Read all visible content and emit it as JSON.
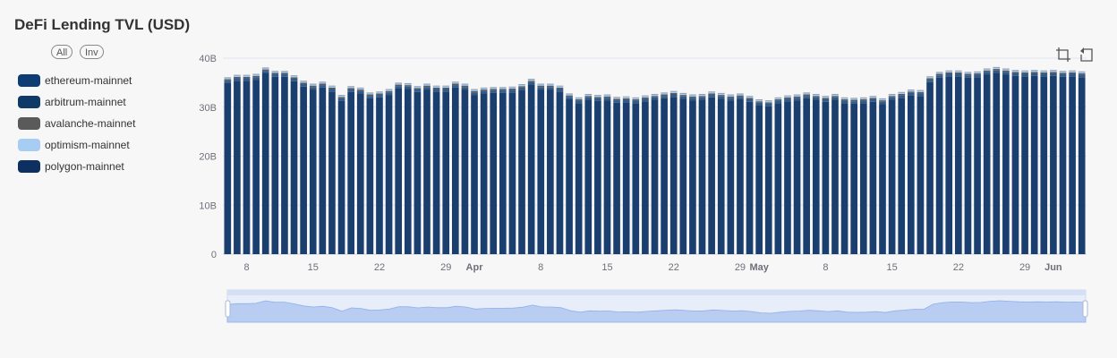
{
  "title": "DeFi Lending TVL (USD)",
  "legend_controls": {
    "all_label": "All",
    "inv_label": "Inv"
  },
  "toolbox": [
    "zoom-icon",
    "restore-icon"
  ],
  "chart_data": {
    "type": "bar",
    "stacked": true,
    "title": "DeFi Lending TVL (USD)",
    "xlabel": "",
    "ylabel": "",
    "ylim": [
      0,
      40
    ],
    "y_ticks": [
      "0",
      "10B",
      "20B",
      "30B",
      "40B"
    ],
    "y_tick_values": [
      0,
      10,
      20,
      30,
      40
    ],
    "grid": "horizontal",
    "legend_position": "left",
    "x_dates": [
      "Mar 6",
      "Mar 7",
      "Mar 8",
      "Mar 9",
      "Mar 10",
      "Mar 11",
      "Mar 12",
      "Mar 13",
      "Mar 14",
      "Mar 15",
      "Mar 16",
      "Mar 17",
      "Mar 18",
      "Mar 19",
      "Mar 20",
      "Mar 21",
      "Mar 22",
      "Mar 23",
      "Mar 24",
      "Mar 25",
      "Mar 26",
      "Mar 27",
      "Mar 28",
      "Mar 29",
      "Mar 30",
      "Mar 31",
      "Apr 1",
      "Apr 2",
      "Apr 3",
      "Apr 4",
      "Apr 5",
      "Apr 6",
      "Apr 7",
      "Apr 8",
      "Apr 9",
      "Apr 10",
      "Apr 11",
      "Apr 12",
      "Apr 13",
      "Apr 14",
      "Apr 15",
      "Apr 16",
      "Apr 17",
      "Apr 18",
      "Apr 19",
      "Apr 20",
      "Apr 21",
      "Apr 22",
      "Apr 23",
      "Apr 24",
      "Apr 25",
      "Apr 26",
      "Apr 27",
      "Apr 28",
      "Apr 29",
      "Apr 30",
      "May 1",
      "May 2",
      "May 3",
      "May 4",
      "May 5",
      "May 6",
      "May 7",
      "May 8",
      "May 9",
      "May 10",
      "May 11",
      "May 12",
      "May 13",
      "May 14",
      "May 15",
      "May 16",
      "May 17",
      "May 18",
      "May 19",
      "May 20",
      "May 21",
      "May 22",
      "May 23",
      "May 24",
      "May 25",
      "May 26",
      "May 27",
      "May 28",
      "May 29",
      "May 30",
      "May 31",
      "Jun 1",
      "Jun 2",
      "Jun 3",
      "Jun 4"
    ],
    "x_tick_labels": [
      {
        "label": "8",
        "date": "Mar 8",
        "bold": false
      },
      {
        "label": "15",
        "date": "Mar 15",
        "bold": false
      },
      {
        "label": "22",
        "date": "Mar 22",
        "bold": false
      },
      {
        "label": "29",
        "date": "Mar 29",
        "bold": false
      },
      {
        "label": "Apr",
        "date": "Apr 1",
        "bold": true
      },
      {
        "label": "8",
        "date": "Apr 8",
        "bold": false
      },
      {
        "label": "15",
        "date": "Apr 15",
        "bold": false
      },
      {
        "label": "22",
        "date": "Apr 22",
        "bold": false
      },
      {
        "label": "29",
        "date": "Apr 29",
        "bold": false
      },
      {
        "label": "May",
        "date": "May 1",
        "bold": true
      },
      {
        "label": "8",
        "date": "May 8",
        "bold": false
      },
      {
        "label": "15",
        "date": "May 15",
        "bold": false
      },
      {
        "label": "22",
        "date": "May 22",
        "bold": false
      },
      {
        "label": "29",
        "date": "May 29",
        "bold": false
      },
      {
        "label": "Jun",
        "date": "Jun 1",
        "bold": true
      }
    ],
    "series": [
      {
        "name": "ethereum-mainnet",
        "color": "#1a3f6e",
        "values": [
          34.9,
          35.4,
          35.4,
          35.6,
          36.9,
          36.2,
          36.2,
          35.3,
          34.2,
          33.6,
          34.0,
          33.2,
          31.3,
          33.1,
          32.8,
          31.8,
          32.0,
          32.5,
          33.8,
          33.7,
          33.1,
          33.6,
          33.2,
          33.2,
          34.0,
          33.6,
          32.5,
          32.8,
          32.9,
          32.9,
          33.0,
          33.5,
          34.6,
          33.6,
          33.6,
          33.2,
          31.6,
          30.8,
          31.5,
          31.3,
          31.4,
          30.9,
          31.0,
          30.8,
          31.2,
          31.5,
          31.8,
          32.1,
          31.7,
          31.4,
          31.5,
          32.0,
          31.7,
          31.4,
          31.6,
          31.1,
          30.4,
          30.2,
          30.8,
          31.2,
          31.4,
          31.8,
          31.5,
          31.1,
          31.5,
          30.8,
          30.7,
          30.8,
          31.1,
          30.6,
          31.5,
          31.9,
          32.4,
          32.3,
          35.1,
          36.0,
          36.3,
          36.3,
          36.0,
          36.1,
          36.7,
          37.0,
          36.7,
          36.4,
          36.3,
          36.4,
          36.3,
          36.4,
          36.2,
          36.3,
          36.1
        ]
      },
      {
        "name": "arbitrum-mainnet",
        "color": "#2f5a8c",
        "values": [
          0.5,
          0.5,
          0.5,
          0.5,
          0.5,
          0.5,
          0.5,
          0.5,
          0.5,
          0.5,
          0.5,
          0.5,
          0.5,
          0.5,
          0.5,
          0.5,
          0.5,
          0.5,
          0.5,
          0.5,
          0.5,
          0.5,
          0.5,
          0.5,
          0.5,
          0.5,
          0.5,
          0.5,
          0.5,
          0.5,
          0.5,
          0.5,
          0.5,
          0.5,
          0.5,
          0.5,
          0.5,
          0.5,
          0.5,
          0.5,
          0.5,
          0.5,
          0.5,
          0.5,
          0.5,
          0.5,
          0.5,
          0.5,
          0.5,
          0.5,
          0.5,
          0.5,
          0.5,
          0.5,
          0.5,
          0.5,
          0.5,
          0.5,
          0.5,
          0.5,
          0.5,
          0.5,
          0.5,
          0.5,
          0.5,
          0.5,
          0.5,
          0.5,
          0.5,
          0.5,
          0.5,
          0.5,
          0.5,
          0.5,
          0.5,
          0.5,
          0.5,
          0.5,
          0.5,
          0.5,
          0.5,
          0.5,
          0.5,
          0.5,
          0.5,
          0.5,
          0.5,
          0.5,
          0.5,
          0.5,
          0.5
        ]
      },
      {
        "name": "avalanche-mainnet",
        "color": "#5a5a5a",
        "values": [
          0.3,
          0.3,
          0.3,
          0.3,
          0.3,
          0.3,
          0.3,
          0.3,
          0.3,
          0.3,
          0.3,
          0.3,
          0.3,
          0.3,
          0.3,
          0.3,
          0.3,
          0.3,
          0.3,
          0.3,
          0.3,
          0.3,
          0.3,
          0.3,
          0.3,
          0.3,
          0.3,
          0.3,
          0.3,
          0.3,
          0.3,
          0.3,
          0.3,
          0.3,
          0.3,
          0.3,
          0.3,
          0.3,
          0.3,
          0.3,
          0.3,
          0.3,
          0.3,
          0.3,
          0.3,
          0.3,
          0.3,
          0.3,
          0.3,
          0.3,
          0.3,
          0.3,
          0.3,
          0.3,
          0.3,
          0.3,
          0.3,
          0.3,
          0.3,
          0.3,
          0.3,
          0.3,
          0.3,
          0.3,
          0.3,
          0.3,
          0.3,
          0.3,
          0.3,
          0.3,
          0.3,
          0.3,
          0.3,
          0.3,
          0.3,
          0.3,
          0.3,
          0.3,
          0.3,
          0.3,
          0.3,
          0.3,
          0.3,
          0.3,
          0.3,
          0.3,
          0.3,
          0.3,
          0.3,
          0.3,
          0.3
        ]
      },
      {
        "name": "optimism-mainnet",
        "color": "#a7cdf2",
        "values": [
          0.2,
          0.2,
          0.2,
          0.2,
          0.2,
          0.2,
          0.2,
          0.2,
          0.2,
          0.2,
          0.2,
          0.2,
          0.2,
          0.2,
          0.2,
          0.2,
          0.2,
          0.2,
          0.2,
          0.2,
          0.2,
          0.2,
          0.2,
          0.2,
          0.2,
          0.2,
          0.2,
          0.2,
          0.2,
          0.2,
          0.2,
          0.2,
          0.2,
          0.2,
          0.2,
          0.2,
          0.2,
          0.2,
          0.2,
          0.2,
          0.2,
          0.2,
          0.2,
          0.2,
          0.2,
          0.2,
          0.2,
          0.2,
          0.2,
          0.2,
          0.2,
          0.2,
          0.2,
          0.2,
          0.2,
          0.2,
          0.2,
          0.2,
          0.2,
          0.2,
          0.2,
          0.2,
          0.2,
          0.2,
          0.2,
          0.2,
          0.2,
          0.2,
          0.2,
          0.2,
          0.2,
          0.2,
          0.2,
          0.2,
          0.2,
          0.2,
          0.2,
          0.2,
          0.2,
          0.2,
          0.2,
          0.2,
          0.2,
          0.2,
          0.2,
          0.2,
          0.2,
          0.2,
          0.2,
          0.2,
          0.2
        ]
      },
      {
        "name": "polygon-mainnet",
        "color": "#8fa0b8",
        "values": [
          0.2,
          0.2,
          0.2,
          0.2,
          0.2,
          0.2,
          0.2,
          0.2,
          0.2,
          0.2,
          0.2,
          0.2,
          0.2,
          0.2,
          0.2,
          0.2,
          0.2,
          0.2,
          0.2,
          0.2,
          0.2,
          0.2,
          0.2,
          0.2,
          0.2,
          0.2,
          0.2,
          0.2,
          0.2,
          0.2,
          0.2,
          0.2,
          0.2,
          0.2,
          0.2,
          0.2,
          0.2,
          0.2,
          0.2,
          0.2,
          0.2,
          0.2,
          0.2,
          0.2,
          0.2,
          0.2,
          0.2,
          0.2,
          0.2,
          0.2,
          0.2,
          0.2,
          0.2,
          0.2,
          0.2,
          0.2,
          0.2,
          0.2,
          0.2,
          0.2,
          0.2,
          0.2,
          0.2,
          0.2,
          0.2,
          0.2,
          0.2,
          0.2,
          0.2,
          0.2,
          0.2,
          0.2,
          0.2,
          0.2,
          0.2,
          0.2,
          0.2,
          0.2,
          0.2,
          0.2,
          0.2,
          0.2,
          0.2,
          0.2,
          0.2,
          0.2,
          0.2,
          0.2,
          0.2,
          0.2,
          0.2
        ]
      }
    ],
    "legend_swatch_colors": [
      "#0d3d72",
      "#0f3a68",
      "#5a5a5a",
      "#a7cdf2",
      "#0d3060"
    ],
    "datazoom": {
      "range": [
        0,
        100
      ]
    }
  }
}
